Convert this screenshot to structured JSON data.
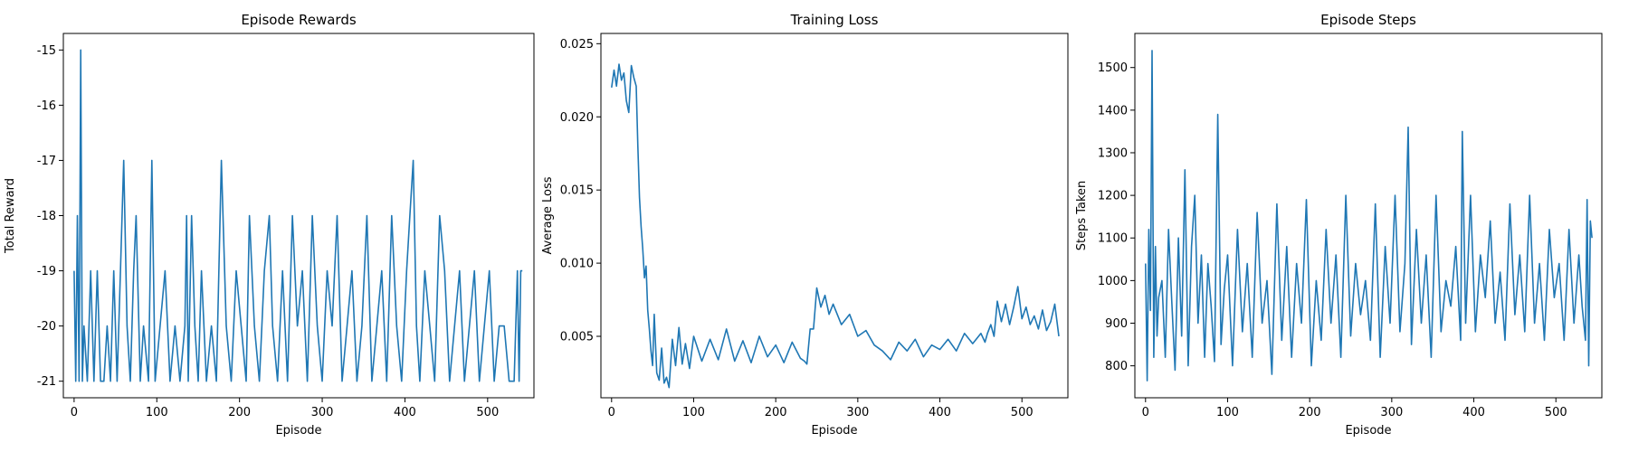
{
  "colors": {
    "series": "#1f77b4",
    "axis": "#000000"
  },
  "chart_data": [
    {
      "type": "line",
      "title": "Episode Rewards",
      "xlabel": "Episode",
      "ylabel": "Total Reward",
      "xlim": [
        -13,
        556
      ],
      "ylim": [
        -21.3,
        -14.7
      ],
      "xticks": [
        0,
        100,
        200,
        300,
        400,
        500
      ],
      "yticks": [
        -21,
        -20,
        -19,
        -18,
        -17,
        -16,
        -15
      ],
      "grid": false,
      "series": [
        {
          "x": [
            0,
            2,
            4,
            6,
            8,
            10,
            12,
            16,
            20,
            24,
            28,
            32,
            36,
            40,
            44,
            48,
            52,
            56,
            60,
            64,
            68,
            72,
            75,
            80,
            84,
            90,
            94,
            98,
            104,
            110,
            116,
            122,
            128,
            134,
            136,
            138,
            142,
            146,
            150,
            154,
            160,
            166,
            172,
            178,
            184,
            190,
            196,
            202,
            208,
            212,
            218,
            224,
            230,
            236,
            240,
            246,
            252,
            258,
            264,
            270,
            276,
            282,
            288,
            294,
            300,
            306,
            312,
            318,
            324,
            330,
            336,
            342,
            348,
            354,
            360,
            366,
            372,
            378,
            384,
            390,
            396,
            402,
            406,
            410,
            414,
            418,
            424,
            430,
            436,
            442,
            448,
            454,
            460,
            466,
            472,
            478,
            484,
            490,
            496,
            502,
            508,
            514,
            520,
            526,
            532,
            536,
            538,
            540,
            542
          ],
          "y": [
            -19,
            -21,
            -18,
            -21,
            -15,
            -21,
            -20,
            -21,
            -19,
            -21,
            -19,
            -21,
            -21,
            -20,
            -21,
            -19,
            -21,
            -19,
            -17,
            -20,
            -21,
            -19,
            -18,
            -21,
            -20,
            -21,
            -17,
            -21,
            -20,
            -19,
            -21,
            -20,
            -21,
            -20,
            -18,
            -21,
            -18,
            -20,
            -21,
            -19,
            -21,
            -20,
            -21,
            -17,
            -20,
            -21,
            -19,
            -20,
            -21,
            -18,
            -20,
            -21,
            -19,
            -18,
            -20,
            -21,
            -19,
            -21,
            -18,
            -20,
            -19,
            -21,
            -18,
            -20,
            -21,
            -19,
            -20,
            -18,
            -21,
            -20,
            -19,
            -21,
            -20,
            -18,
            -21,
            -20,
            -19,
            -21,
            -18,
            -20,
            -21,
            -19,
            -18,
            -17,
            -20,
            -21,
            -19,
            -20,
            -21,
            -18,
            -19,
            -21,
            -20,
            -19,
            -21,
            -20,
            -19,
            -21,
            -20,
            -19,
            -21,
            -20,
            -20,
            -21,
            -21,
            -19,
            -21,
            -19,
            -19
          ]
        }
      ]
    },
    {
      "type": "line",
      "title": "Training Loss",
      "xlabel": "Episode",
      "ylabel": "Average Loss",
      "xlim": [
        -13,
        556
      ],
      "ylim": [
        0.0008,
        0.0257
      ],
      "xticks": [
        0,
        100,
        200,
        300,
        400,
        500
      ],
      "yticks": [
        0.005,
        0.01,
        0.015,
        0.02,
        0.025
      ],
      "ytick_labels": [
        "0.005",
        "0.010",
        "0.015",
        "0.020",
        "0.025"
      ],
      "grid": false,
      "series": [
        {
          "x": [
            0,
            3,
            6,
            9,
            12,
            15,
            18,
            21,
            24,
            27,
            30,
            32,
            34,
            36,
            38,
            40,
            42,
            44,
            46,
            48,
            50,
            52,
            55,
            58,
            61,
            64,
            67,
            70,
            74,
            78,
            82,
            86,
            90,
            95,
            100,
            110,
            120,
            130,
            140,
            150,
            160,
            170,
            180,
            190,
            200,
            210,
            220,
            230,
            235,
            238,
            242,
            246,
            250,
            255,
            260,
            265,
            270,
            280,
            290,
            300,
            310,
            320,
            330,
            340,
            350,
            360,
            370,
            380,
            390,
            400,
            410,
            420,
            430,
            440,
            450,
            455,
            458,
            462,
            466,
            470,
            475,
            480,
            485,
            490,
            495,
            500,
            505,
            510,
            515,
            520,
            525,
            530,
            535,
            540,
            545
          ],
          "y": [
            0.022,
            0.0232,
            0.0221,
            0.0236,
            0.0225,
            0.023,
            0.0211,
            0.0203,
            0.0235,
            0.0227,
            0.0221,
            0.018,
            0.0145,
            0.0125,
            0.011,
            0.009,
            0.0098,
            0.0068,
            0.0055,
            0.004,
            0.003,
            0.0065,
            0.0025,
            0.002,
            0.0042,
            0.0018,
            0.0022,
            0.0015,
            0.0048,
            0.003,
            0.0056,
            0.0031,
            0.0045,
            0.0028,
            0.005,
            0.0033,
            0.0048,
            0.0034,
            0.0055,
            0.0033,
            0.0047,
            0.0032,
            0.005,
            0.0036,
            0.0044,
            0.0032,
            0.0046,
            0.0035,
            0.0033,
            0.0031,
            0.0055,
            0.0055,
            0.0083,
            0.007,
            0.0078,
            0.0065,
            0.0072,
            0.0058,
            0.0065,
            0.005,
            0.0054,
            0.0044,
            0.004,
            0.0034,
            0.0046,
            0.004,
            0.0048,
            0.0036,
            0.0044,
            0.0041,
            0.0048,
            0.004,
            0.0052,
            0.0045,
            0.0052,
            0.0046,
            0.0052,
            0.0058,
            0.005,
            0.0074,
            0.006,
            0.0072,
            0.0058,
            0.007,
            0.0084,
            0.0062,
            0.007,
            0.0058,
            0.0064,
            0.0055,
            0.0068,
            0.0054,
            0.006,
            0.0072,
            0.005
          ]
        }
      ]
    },
    {
      "type": "line",
      "title": "Episode Steps",
      "xlabel": "Episode",
      "ylabel": "Steps Taken",
      "xlim": [
        -13,
        556
      ],
      "ylim": [
        725,
        1580
      ],
      "xticks": [
        0,
        100,
        200,
        300,
        400,
        500
      ],
      "yticks": [
        800,
        900,
        1000,
        1100,
        1200,
        1300,
        1400,
        1500
      ],
      "grid": false,
      "series": [
        {
          "x": [
            0,
            2,
            4,
            6,
            8,
            10,
            12,
            14,
            16,
            20,
            24,
            28,
            32,
            36,
            40,
            44,
            48,
            52,
            56,
            60,
            64,
            68,
            72,
            76,
            80,
            84,
            88,
            92,
            96,
            100,
            106,
            112,
            118,
            124,
            130,
            136,
            142,
            148,
            154,
            160,
            166,
            172,
            178,
            184,
            190,
            196,
            202,
            208,
            214,
            220,
            226,
            232,
            238,
            244,
            250,
            256,
            262,
            268,
            274,
            280,
            286,
            292,
            298,
            304,
            310,
            316,
            320,
            324,
            330,
            336,
            342,
            348,
            354,
            360,
            366,
            372,
            378,
            384,
            386,
            390,
            396,
            402,
            408,
            414,
            420,
            426,
            432,
            438,
            444,
            450,
            456,
            462,
            468,
            474,
            480,
            486,
            492,
            498,
            504,
            510,
            516,
            522,
            528,
            532,
            536,
            538,
            540,
            542,
            544
          ],
          "y": [
            1040,
            765,
            1120,
            930,
            1540,
            820,
            1080,
            870,
            960,
            1000,
            820,
            1120,
            950,
            790,
            1100,
            870,
            1260,
            800,
            1080,
            1200,
            900,
            1060,
            820,
            1040,
            940,
            810,
            1390,
            850,
            980,
            1060,
            800,
            1120,
            880,
            1040,
            820,
            1160,
            900,
            1000,
            780,
            1180,
            860,
            1080,
            820,
            1040,
            900,
            1190,
            800,
            1000,
            860,
            1120,
            900,
            1060,
            820,
            1200,
            870,
            1040,
            920,
            1000,
            860,
            1180,
            820,
            1080,
            900,
            1200,
            880,
            1040,
            1360,
            850,
            1120,
            900,
            1060,
            820,
            1200,
            880,
            1000,
            940,
            1080,
            860,
            1350,
            900,
            1200,
            880,
            1060,
            960,
            1140,
            900,
            1020,
            860,
            1180,
            920,
            1060,
            880,
            1200,
            900,
            1040,
            860,
            1120,
            960,
            1040,
            860,
            1120,
            900,
            1060,
            940,
            860,
            1190,
            800,
            1140,
            1100
          ]
        }
      ]
    }
  ]
}
